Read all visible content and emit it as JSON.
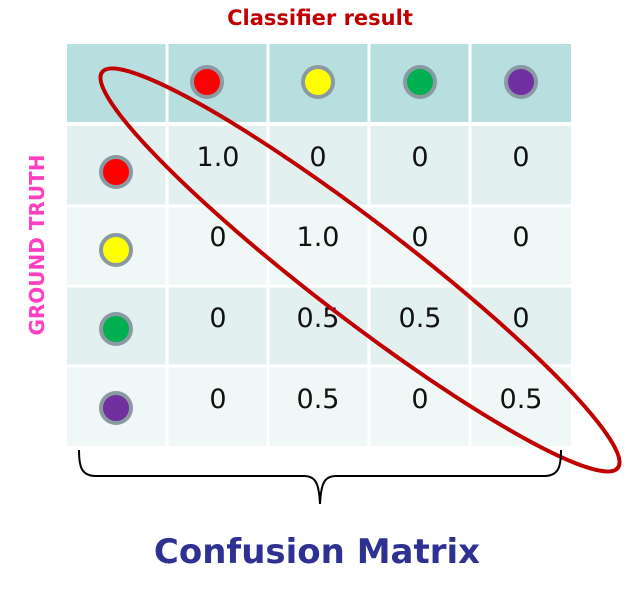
{
  "colors": {
    "header_bg": "#b8dfe0",
    "row_bg_dark": "#e3f0f0",
    "row_bg_light": "#f0f7f7",
    "grid_line": "#ffffff",
    "dot_stroke": "#8a9aa3",
    "ellipse": "#c00000",
    "classifier_title": "#c00000",
    "ground_truth_title": "#ff3fbf",
    "bottom_title": "#2e3192",
    "brace": "#000000"
  },
  "labels": {
    "classifier_result": "Classifier result",
    "ground_truth": "GROUND TRUTH",
    "confusion_matrix": "Confusion Matrix"
  },
  "classes": [
    {
      "name": "red",
      "color": "#ff0000"
    },
    {
      "name": "yellow",
      "color": "#ffff00"
    },
    {
      "name": "green",
      "color": "#00b050"
    },
    {
      "name": "purple",
      "color": "#7030a0"
    }
  ],
  "matrix": [
    [
      "1.0",
      "0",
      "0",
      "0"
    ],
    [
      "0",
      "1.0",
      "0",
      "0"
    ],
    [
      "0",
      "0.5",
      "0.5",
      "0"
    ],
    [
      "0",
      "0.5",
      "0",
      "0.5"
    ]
  ]
}
